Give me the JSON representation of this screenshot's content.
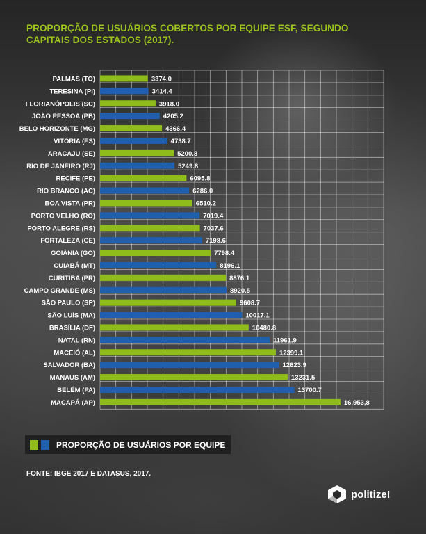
{
  "title": "PROPORÇÃO DE USUÁRIOS COBERTOS POR EQUIPE ESF, SEGUNDO CAPITAIS DOS ESTADOS (2017).",
  "legend": {
    "label": "PROPORÇÃO DE USUÁRIOS POR EQUIPE"
  },
  "source": "FONTE: IBGE 2017 E DATASUS, 2017.",
  "logo": {
    "text": "politize!"
  },
  "colors": {
    "green": "#8fbc1b",
    "blue": "#1f5fae",
    "title": "#9bc31c",
    "grid": "#ffffff"
  },
  "chart_data": {
    "type": "bar",
    "orientation": "horizontal",
    "title": "PROPORÇÃO DE USUÁRIOS COBERTOS POR EQUIPE ESF, SEGUNDO CAPITAIS DOS ESTADOS (2017).",
    "xlim": [
      0,
      20000
    ],
    "grid": true,
    "legend_position": "bottom-left",
    "bars": [
      {
        "label": "PALMAS (TO)",
        "value": 3374.0,
        "text": "3374.0",
        "color": "green"
      },
      {
        "label": "TERESINA (PI)",
        "value": 3414.4,
        "text": "3414.4",
        "color": "blue"
      },
      {
        "label": "FLORIANÓPOLIS (SC)",
        "value": 3918.0,
        "text": "3918.0",
        "color": "green"
      },
      {
        "label": "JOÃO PESSOA (PB)",
        "value": 4205.2,
        "text": "4205.2",
        "color": "blue"
      },
      {
        "label": "BELO HORIZONTE (MG)",
        "value": 4366.4,
        "text": "4366.4",
        "color": "green"
      },
      {
        "label": "VITÓRIA (ES)",
        "value": 4738.7,
        "text": "4738.7",
        "color": "blue"
      },
      {
        "label": "ARACAJU (SE)",
        "value": 5200.8,
        "text": "5200.8",
        "color": "green"
      },
      {
        "label": "RIO DE JANEIRO (RJ)",
        "value": 5249.8,
        "text": "5249.8",
        "color": "blue"
      },
      {
        "label": "RECIFE (PE)",
        "value": 6095.8,
        "text": "6095.8",
        "color": "green"
      },
      {
        "label": "RIO BRANCO (AC)",
        "value": 6286.0,
        "text": "6286.0",
        "color": "blue"
      },
      {
        "label": "BOA VISTA (PR)",
        "value": 6510.2,
        "text": "6510.2",
        "color": "green"
      },
      {
        "label": "PORTO VELHO (RO)",
        "value": 7019.4,
        "text": "7019.4",
        "color": "blue"
      },
      {
        "label": "PORTO ALEGRE (RS)",
        "value": 7037.6,
        "text": "7037.6",
        "color": "green"
      },
      {
        "label": "FORTALEZA (CE)",
        "value": 7198.6,
        "text": "7198.6",
        "color": "blue"
      },
      {
        "label": "GOIÂNIA (GO)",
        "value": 7798.4,
        "text": "7798.4",
        "color": "green"
      },
      {
        "label": "CUIABÁ (MT)",
        "value": 8196.1,
        "text": "8196.1",
        "color": "blue"
      },
      {
        "label": "CURITIBA (PR)",
        "value": 8876.1,
        "text": "8876.1",
        "color": "green"
      },
      {
        "label": "CAMPO GRANDE (MS)",
        "value": 8920.5,
        "text": "8920.5",
        "color": "blue"
      },
      {
        "label": "SÃO PAULO (SP)",
        "value": 9608.7,
        "text": "9608.7",
        "color": "green"
      },
      {
        "label": "SÃO LUÍS (MA)",
        "value": 10017.1,
        "text": "10017.1",
        "color": "blue"
      },
      {
        "label": "BRASÍLIA (DF)",
        "value": 10480.8,
        "text": "10480.8",
        "color": "green"
      },
      {
        "label": "NATAL (RN)",
        "value": 11961.9,
        "text": "11961.9",
        "color": "blue"
      },
      {
        "label": "MACEIÓ (AL)",
        "value": 12399.1,
        "text": "12399.1",
        "color": "green"
      },
      {
        "label": "SALVADOR (BA)",
        "value": 12623.9,
        "text": "12623.9",
        "color": "blue"
      },
      {
        "label": "MANAUS (AM)",
        "value": 13231.5,
        "text": "13231.5",
        "color": "green"
      },
      {
        "label": "BELÉM (PA)",
        "value": 13700.7,
        "text": "13700.7",
        "color": "blue"
      },
      {
        "label": "MACAPÁ (AP)",
        "value": 16953.8,
        "text": "16.953,8",
        "color": "green"
      }
    ]
  }
}
